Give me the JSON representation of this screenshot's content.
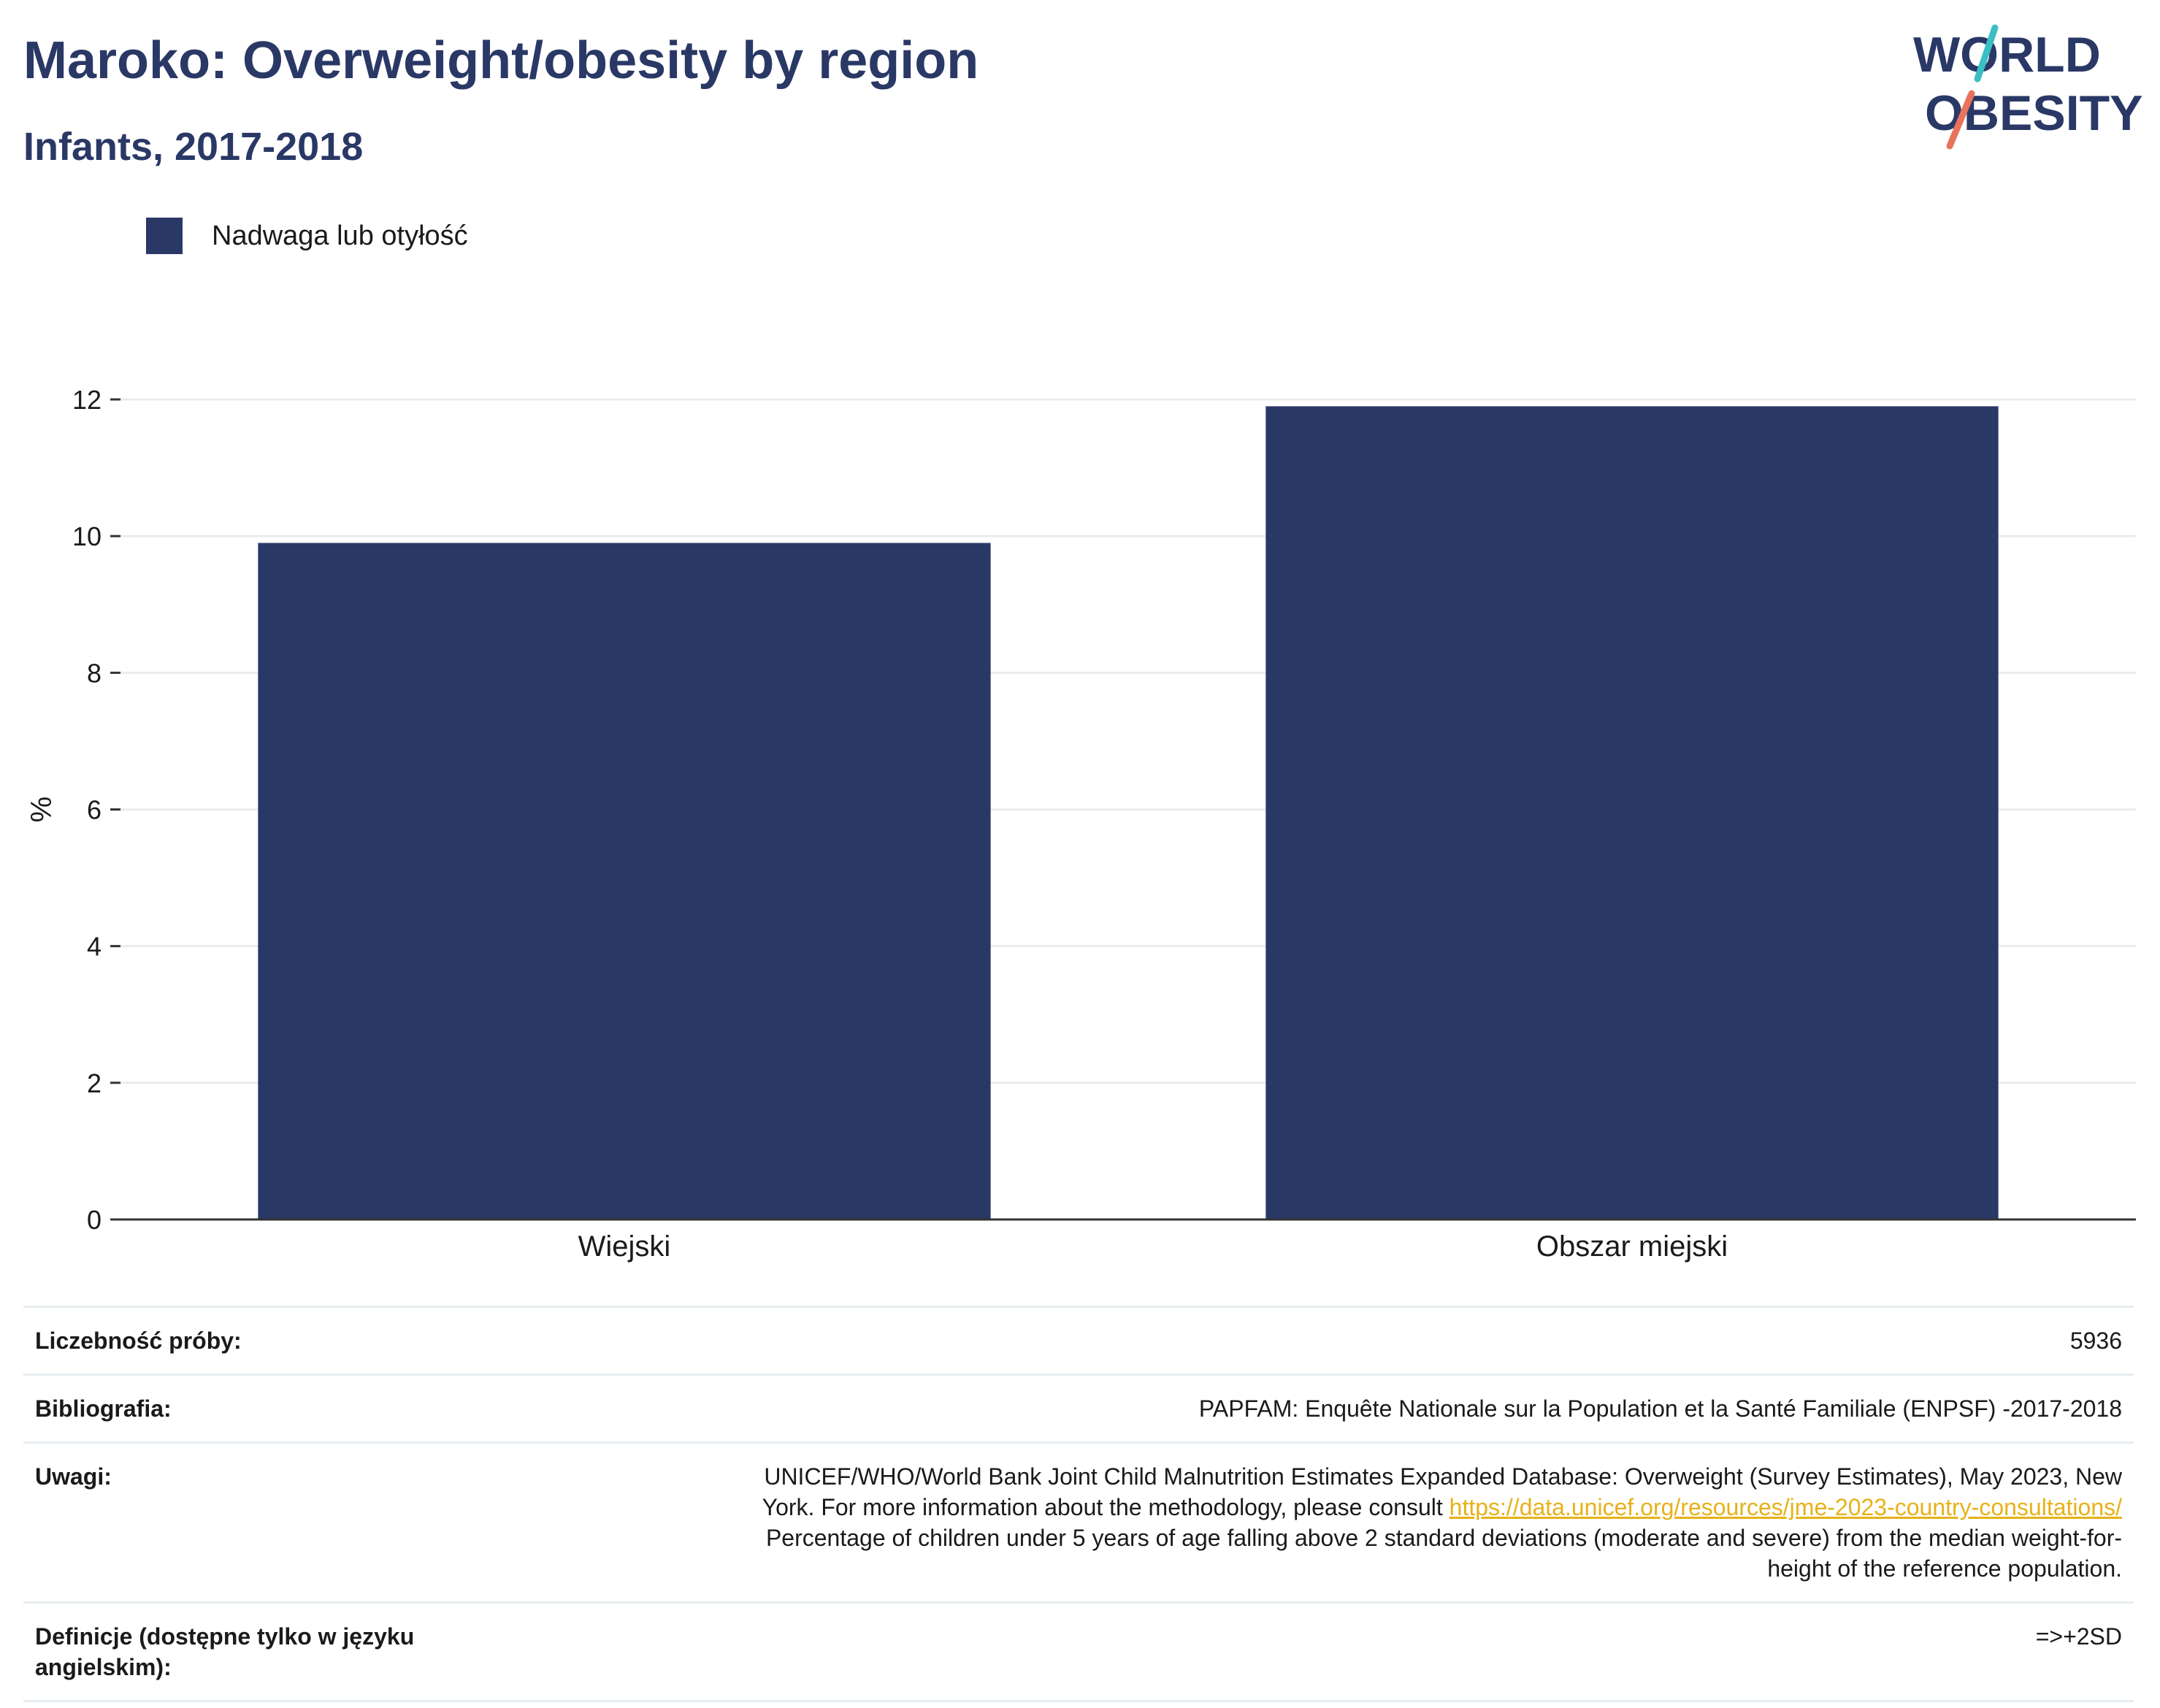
{
  "header": {
    "title": "Maroko: Overweight/obesity by region",
    "subtitle": "Infants, 2017-2018"
  },
  "logo": {
    "line1": "WORLD",
    "line2": "OBESITY",
    "colors": {
      "text": "#2a3866",
      "teal": "#3bbfc4",
      "coral": "#e8735c"
    }
  },
  "legend": {
    "label": "Nadwaga lub otyłość",
    "color": "#2a3866"
  },
  "chart_data": {
    "type": "bar",
    "categories": [
      "Wiejski",
      "Obszar miejski"
    ],
    "series": [
      {
        "name": "Nadwaga lub otyłość",
        "values": [
          9.9,
          11.9
        ],
        "color": "#2a3866"
      }
    ],
    "ylabel": "%",
    "ylim": [
      0,
      12
    ],
    "yticks": [
      "0",
      "2",
      "4",
      "6",
      "8",
      "10",
      "12"
    ],
    "grid": true,
    "legend_position": "top-left"
  },
  "info": {
    "sample_size_label": "Liczebność próby:",
    "sample_size_value": "5936",
    "bibliography_label": "Bibliografia:",
    "bibliography_value": "PAPFAM: Enquête Nationale sur la Population et la Santé Familiale (ENPSF) -2017-2018",
    "notes_label": "Uwagi:",
    "notes_line1": "UNICEF/WHO/World Bank Joint Child Malnutrition Estimates Expanded Database: Overweight (Survey Estimates), May 2023, New",
    "notes_line2": "York. For more information about the methodology, please consult ",
    "notes_link": "https://data.unicef.org/resources/jme-2023-country-consultations/",
    "notes_line3": "Percentage of children under 5 years of age falling above 2 standard deviations (moderate and severe) from the median weight-for-",
    "notes_line4": "height of the reference population.",
    "definitions_label": "Definicje (dostępne tylko w języku angielskim):",
    "definitions_value": "=>+2SD"
  }
}
